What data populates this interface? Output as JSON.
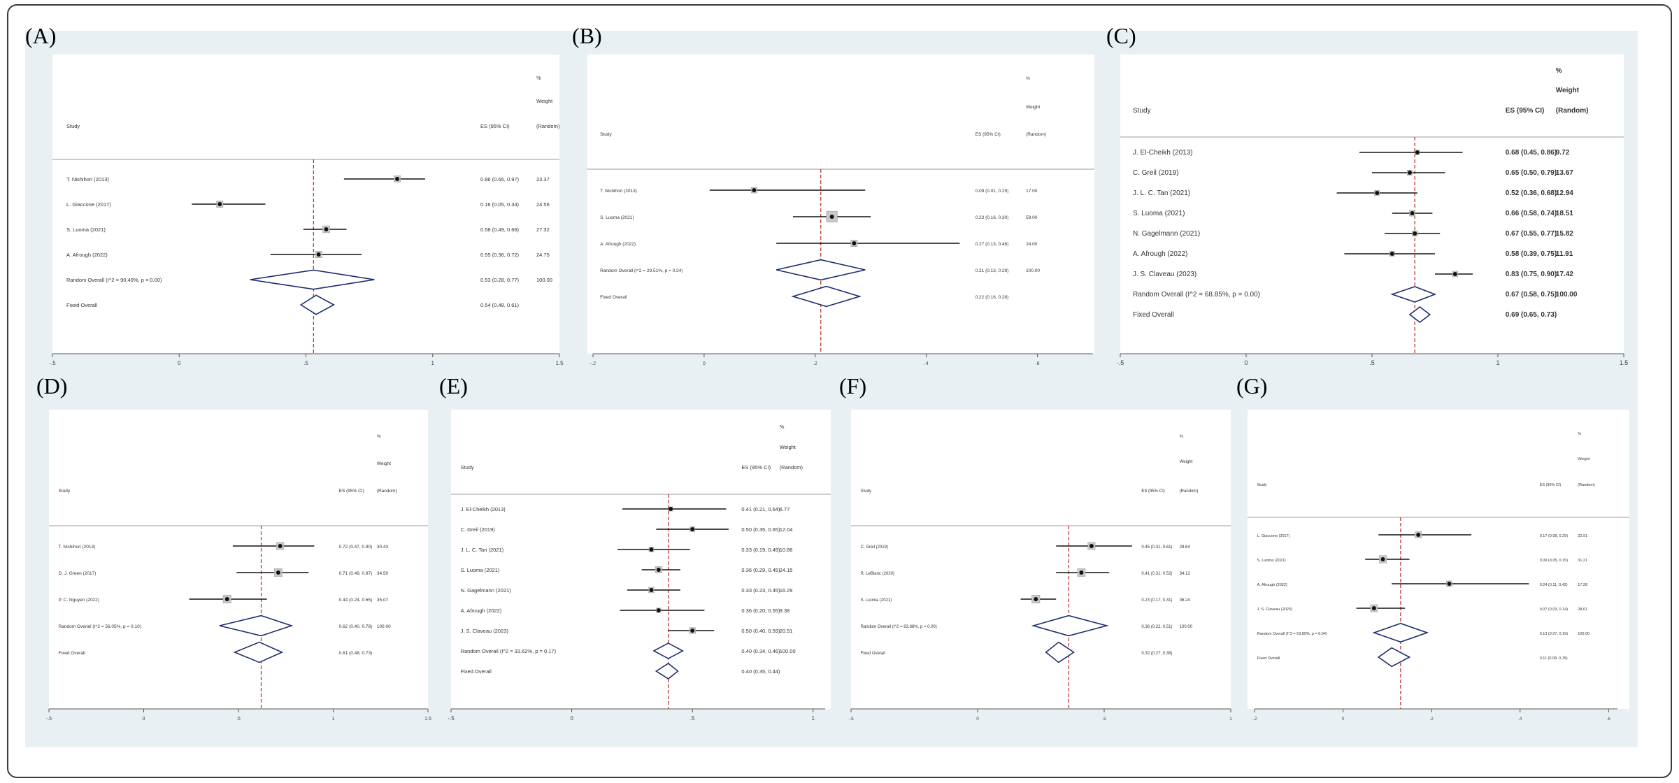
{
  "chart_data": [
    {
      "type": "forest",
      "panel": "(A)",
      "headers": {
        "study": "Study",
        "es": "ES (95% CI)",
        "weight_top": "%",
        "weight_mid": "Weight",
        "weight_bot": "(Random)"
      },
      "ticks": [
        -0.5,
        0,
        0.5,
        1,
        1.5
      ],
      "tick_labels": [
        "-.5",
        "0",
        ".5",
        "1",
        "1.5"
      ],
      "xlim": [
        -0.5,
        1.5
      ],
      "ref_line": 0.53,
      "studies": [
        {
          "label": "T. Nishihori (2013)",
          "es": 0.86,
          "lo": 0.65,
          "hi": 0.97,
          "es_text": "0.86 (0.65, 0.97)",
          "weight": "23.37"
        },
        {
          "label": "L. Giaccone (2017)",
          "es": 0.16,
          "lo": 0.05,
          "hi": 0.34,
          "es_text": "0.16 (0.05, 0.34)",
          "weight": "24.56"
        },
        {
          "label": "S. Luoma (2021)",
          "es": 0.58,
          "lo": 0.49,
          "hi": 0.66,
          "es_text": "0.58 (0.49, 0.66)",
          "weight": "27.32"
        },
        {
          "label": "A. Afrough (2022)",
          "es": 0.55,
          "lo": 0.36,
          "hi": 0.72,
          "es_text": "0.55 (0.36, 0.72)",
          "weight": "24.75"
        }
      ],
      "random": {
        "label": "Random Overall  (I^2 = 90.49%, p = 0.00)",
        "es": 0.53,
        "lo": 0.28,
        "hi": 0.77,
        "es_text": "0.53 (0.28, 0.77)",
        "weight": "100.00"
      },
      "fixed": {
        "label": "Fixed Overall",
        "es": 0.54,
        "lo": 0.48,
        "hi": 0.61,
        "es_text": "0.54 (0.48, 0.61)"
      }
    },
    {
      "type": "forest",
      "panel": "(B)",
      "headers": {
        "study": "Study",
        "es": "ES (95% CI)",
        "weight_top": "%",
        "weight_mid": "Weight",
        "weight_bot": "(Random)"
      },
      "ticks": [
        -0.2,
        0,
        0.2,
        0.4,
        0.6
      ],
      "tick_labels": [
        "-.2",
        "0",
        ".2",
        ".4",
        ".6"
      ],
      "xlim": [
        -0.2,
        0.7
      ],
      "ref_line": 0.21,
      "studies": [
        {
          "label": "T. Nishihori (2013)",
          "es": 0.09,
          "lo": 0.01,
          "hi": 0.29,
          "es_text": "0.09 (0.01, 0.29)",
          "weight": "17.00"
        },
        {
          "label": "S. Luoma (2021)",
          "es": 0.23,
          "lo": 0.16,
          "hi": 0.3,
          "es_text": "0.23 (0.16, 0.30)",
          "weight": "59.00"
        },
        {
          "label": "A. Afrough (2022)",
          "es": 0.27,
          "lo": 0.13,
          "hi": 0.46,
          "es_text": "0.27 (0.13, 0.46)",
          "weight": "24.00"
        }
      ],
      "random": {
        "label": "Random Overall  (I^2 = 29.51%, p = 0.24)",
        "es": 0.21,
        "lo": 0.13,
        "hi": 0.29,
        "es_text": "0.21 (0.13, 0.29)",
        "weight": "100.00"
      },
      "fixed": {
        "label": "Fixed Overall",
        "es": 0.22,
        "lo": 0.16,
        "hi": 0.28,
        "es_text": "0.22 (0.16, 0.28)"
      }
    },
    {
      "type": "forest",
      "panel": "(C)",
      "headers": {
        "study": "Study",
        "es": "ES (95% CI)",
        "weight_top": "%",
        "weight_mid": "Weight",
        "weight_bot": "(Random)"
      },
      "ticks": [
        -0.5,
        0,
        0.5,
        1,
        1.5
      ],
      "tick_labels": [
        "-.5",
        "0",
        ".5",
        "1",
        "1.5"
      ],
      "xlim": [
        -0.5,
        1.5
      ],
      "ref_line": 0.67,
      "studies": [
        {
          "label": "J. El-Cheikh (2013)",
          "es": 0.68,
          "lo": 0.45,
          "hi": 0.86,
          "es_text": "0.68 (0.45, 0.86)",
          "weight": "9.72"
        },
        {
          "label": "C. Greil (2019)",
          "es": 0.65,
          "lo": 0.5,
          "hi": 0.79,
          "es_text": "0.65 (0.50, 0.79)",
          "weight": "13.67"
        },
        {
          "label": "J. L. C. Tan (2021)",
          "es": 0.52,
          "lo": 0.36,
          "hi": 0.68,
          "es_text": "0.52 (0.36, 0.68)",
          "weight": "12.94"
        },
        {
          "label": "S. Luoma (2021)",
          "es": 0.66,
          "lo": 0.58,
          "hi": 0.74,
          "es_text": "0.66 (0.58, 0.74)",
          "weight": "18.51"
        },
        {
          "label": "N. Gagelmann (2021)",
          "es": 0.67,
          "lo": 0.55,
          "hi": 0.77,
          "es_text": "0.67 (0.55, 0.77)",
          "weight": "15.82"
        },
        {
          "label": "A. Afrough (2022)",
          "es": 0.58,
          "lo": 0.39,
          "hi": 0.75,
          "es_text": "0.58 (0.39, 0.75)",
          "weight": "11.91"
        },
        {
          "label": "J. S. Claveau (2023)",
          "es": 0.83,
          "lo": 0.75,
          "hi": 0.9,
          "es_text": "0.83 (0.75, 0.90)",
          "weight": "17.42"
        }
      ],
      "random": {
        "label": "Random Overall  (I^2 = 68.85%, p = 0.00)",
        "es": 0.67,
        "lo": 0.58,
        "hi": 0.75,
        "es_text": "0.67 (0.58, 0.75)",
        "weight": "100.00"
      },
      "fixed": {
        "label": "Fixed Overall",
        "es": 0.69,
        "lo": 0.65,
        "hi": 0.73,
        "es_text": "0.69 (0.65, 0.73)"
      }
    },
    {
      "type": "forest",
      "panel": "(D)",
      "headers": {
        "study": "Study",
        "es": "ES (95% CI)",
        "weight_top": "%",
        "weight_mid": "Weight",
        "weight_bot": "(Random)"
      },
      "ticks": [
        -0.5,
        0,
        0.5,
        1,
        1.5
      ],
      "tick_labels": [
        "-.5",
        "0",
        ".5",
        "1",
        "1.5"
      ],
      "xlim": [
        -0.5,
        1.5
      ],
      "ref_line": 0.62,
      "studies": [
        {
          "label": "T. Nishihori (2013)",
          "es": 0.72,
          "lo": 0.47,
          "hi": 0.9,
          "es_text": "0.72 (0.47, 0.90)",
          "weight": "30.43"
        },
        {
          "label": "D. J. Green (2017)",
          "es": 0.71,
          "lo": 0.49,
          "hi": 0.87,
          "es_text": "0.71 (0.49, 0.87)",
          "weight": "34.50"
        },
        {
          "label": "P. C. Nguyen (2022)",
          "es": 0.44,
          "lo": 0.24,
          "hi": 0.65,
          "es_text": "0.44 (0.24, 0.65)",
          "weight": "35.07"
        }
      ],
      "random": {
        "label": "Random Overall  (I^2 = 56.05%, p = 0.10)",
        "es": 0.62,
        "lo": 0.4,
        "hi": 0.78,
        "es_text": "0.62 (0.40, 0.78)",
        "weight": "100.00"
      },
      "fixed": {
        "label": "Fixed Overall",
        "es": 0.61,
        "lo": 0.48,
        "hi": 0.73,
        "es_text": "0.61 (0.48, 0.73)"
      }
    },
    {
      "type": "forest",
      "panel": "(E)",
      "headers": {
        "study": "Study",
        "es": "ES (95% CI)",
        "weight_top": "%",
        "weight_mid": "Weight",
        "weight_bot": "(Random)"
      },
      "ticks": [
        -0.5,
        0,
        0.5,
        1
      ],
      "tick_labels": [
        "-.5",
        "0",
        ".5",
        "1"
      ],
      "xlim": [
        -0.5,
        1.05
      ],
      "ref_line": 0.4,
      "studies": [
        {
          "label": "J. El-Cheikh (2013)",
          "es": 0.41,
          "lo": 0.21,
          "hi": 0.64,
          "es_text": "0.41 (0.21, 0.64)",
          "weight": "6.77"
        },
        {
          "label": "C. Greil (2019)",
          "es": 0.5,
          "lo": 0.35,
          "hi": 0.65,
          "es_text": "0.50 (0.35, 0.65)",
          "weight": "12.04"
        },
        {
          "label": "J. L. C. Tan (2021)",
          "es": 0.33,
          "lo": 0.19,
          "hi": 0.49,
          "es_text": "0.33 (0.19, 0.49)",
          "weight": "10.86"
        },
        {
          "label": "S. Luoma (2021)",
          "es": 0.36,
          "lo": 0.29,
          "hi": 0.45,
          "es_text": "0.36 (0.29, 0.45)",
          "weight": "24.15"
        },
        {
          "label": "N. Gagelmann (2021)",
          "es": 0.33,
          "lo": 0.23,
          "hi": 0.45,
          "es_text": "0.33 (0.23, 0.45)",
          "weight": "16.29"
        },
        {
          "label": "A. Afrough (2022)",
          "es": 0.36,
          "lo": 0.2,
          "hi": 0.55,
          "es_text": "0.36 (0.20, 0.55)",
          "weight": "9.38"
        },
        {
          "label": "J. S. Claveau (2023)",
          "es": 0.5,
          "lo": 0.4,
          "hi": 0.59,
          "es_text": "0.50 (0.40, 0.59)",
          "weight": "20.51"
        }
      ],
      "random": {
        "label": "Random Overall  (I^2 = 33.62%, p = 0.17)",
        "es": 0.4,
        "lo": 0.34,
        "hi": 0.46,
        "es_text": "0.40 (0.34, 0.46)",
        "weight": "100.00"
      },
      "fixed": {
        "label": "Fixed Overall",
        "es": 0.4,
        "lo": 0.35,
        "hi": 0.44,
        "es_text": "0.40 (0.35, 0.44)"
      }
    },
    {
      "type": "forest",
      "panel": "(F)",
      "headers": {
        "study": "Study",
        "es": "ES (95% CI)",
        "weight_top": "%",
        "weight_mid": "Weight",
        "weight_bot": "(Random)"
      },
      "ticks": [
        -0.5,
        0,
        0.5,
        1
      ],
      "tick_labels": [
        "-.5",
        "0",
        ".5",
        "1"
      ],
      "xlim": [
        -0.5,
        1.0
      ],
      "ref_line": 0.36,
      "studies": [
        {
          "label": "C. Greil (2019)",
          "es": 0.45,
          "lo": 0.31,
          "hi": 0.61,
          "es_text": "0.45 (0.31, 0.61)",
          "weight": "29.64"
        },
        {
          "label": "R. LeBlanc (2020)",
          "es": 0.41,
          "lo": 0.31,
          "hi": 0.52,
          "es_text": "0.41 (0.31, 0.52)",
          "weight": "34.12"
        },
        {
          "label": "S. Luoma (2021)",
          "es": 0.23,
          "lo": 0.17,
          "hi": 0.31,
          "es_text": "0.23 (0.17, 0.31)",
          "weight": "36.24"
        }
      ],
      "random": {
        "label": "Random Overall  (I^2 = 83.88%, p = 0.00)",
        "es": 0.36,
        "lo": 0.22,
        "hi": 0.51,
        "es_text": "0.36 (0.22, 0.51)",
        "weight": "100.00"
      },
      "fixed": {
        "label": "Fixed Overall",
        "es": 0.32,
        "lo": 0.27,
        "hi": 0.38,
        "es_text": "0.32 (0.27, 0.38)"
      }
    },
    {
      "type": "forest",
      "panel": "(G)",
      "headers": {
        "study": "Study",
        "es": "ES (95% CI)",
        "weight_top": "%",
        "weight_mid": "Weight",
        "weight_bot": "(Random)"
      },
      "ticks": [
        -0.2,
        0,
        0.2,
        0.4,
        0.6
      ],
      "tick_labels": [
        "-.2",
        "0",
        ".2",
        ".4",
        ".6"
      ],
      "xlim": [
        -0.2,
        0.62
      ],
      "ref_line": 0.13,
      "studies": [
        {
          "label": "L. Giaccone (2017)",
          "es": 0.17,
          "lo": 0.08,
          "hi": 0.29,
          "es_text": "0.17 (0.08, 0.29)",
          "weight": "22.91"
        },
        {
          "label": "S. Luoma (2021)",
          "es": 0.09,
          "lo": 0.05,
          "hi": 0.15,
          "es_text": "0.09 (0.05, 0.15)",
          "weight": "31.21"
        },
        {
          "label": "A. Afrough (2022)",
          "es": 0.24,
          "lo": 0.11,
          "hi": 0.42,
          "es_text": "0.24 (0.11, 0.42)",
          "weight": "17.28"
        },
        {
          "label": "J. S. Claveau (2023)",
          "es": 0.07,
          "lo": 0.03,
          "hi": 0.14,
          "es_text": "0.07 (0.03, 0.14)",
          "weight": "28.61"
        }
      ],
      "random": {
        "label": "Random Overall  (I^2 = 63.89%, p = 0.04)",
        "es": 0.13,
        "lo": 0.07,
        "hi": 0.19,
        "es_text": "0.13 (0.07, 0.19)",
        "weight": "100.00"
      },
      "fixed": {
        "label": "Fixed Overall",
        "es": 0.11,
        "lo": 0.08,
        "hi": 0.15,
        "es_text": "0.11 (0.08, 0.15)"
      }
    }
  ]
}
